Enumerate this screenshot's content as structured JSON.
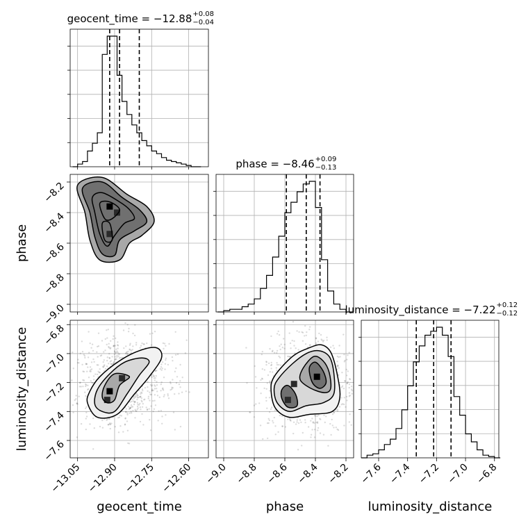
{
  "chart_data": {
    "type": "corner",
    "parameters": [
      {
        "key": "geocent_time",
        "label": "geocent_time",
        "median": -12.88,
        "plus": 0.08,
        "minus": 0.04,
        "title_main": "geocent_time = −12.88",
        "title_plus": "+0.08",
        "title_minus": "−0.04",
        "range": [
          -13.08,
          -12.52
        ],
        "ticks": [
          -13.05,
          -12.9,
          -12.75,
          -12.6
        ],
        "tick_labels": [
          "−13.05",
          "−12.90",
          "−12.75",
          "−12.60"
        ],
        "quantiles": [
          -12.92,
          -12.88,
          -12.8
        ],
        "hist_x": [
          -13.06,
          -13.04,
          -13.02,
          -13.0,
          -12.98,
          -12.96,
          -12.94,
          -12.92,
          -12.9,
          -12.88,
          -12.86,
          -12.84,
          -12.82,
          -12.8,
          -12.78,
          -12.76,
          -12.74,
          -12.72,
          -12.7,
          -12.68,
          -12.66,
          -12.64,
          -12.62,
          -12.6,
          -12.58,
          -12.56
        ],
        "hist_y": [
          0.0,
          0.02,
          0.04,
          0.12,
          0.18,
          0.26,
          0.86,
          1.0,
          1.0,
          0.7,
          0.5,
          0.4,
          0.32,
          0.26,
          0.2,
          0.16,
          0.12,
          0.1,
          0.07,
          0.05,
          0.04,
          0.03,
          0.02,
          0.01,
          0.0,
          0.0
        ]
      },
      {
        "key": "phase",
        "label": "phase",
        "median": -8.46,
        "plus": 0.09,
        "minus": 0.13,
        "title_main": "phase = −8.46",
        "title_plus": "+0.09",
        "title_minus": "−0.13",
        "range": [
          -9.05,
          -8.15
        ],
        "ticks": [
          -9.0,
          -8.8,
          -8.6,
          -8.4,
          -8.2
        ],
        "tick_labels": [
          "−9.0",
          "−8.8",
          "−8.6",
          "−8.4",
          "−8.2"
        ],
        "quantiles": [
          -8.59,
          -8.46,
          -8.37
        ],
        "hist_x": [
          -9.02,
          -8.98,
          -8.94,
          -8.9,
          -8.86,
          -8.82,
          -8.78,
          -8.74,
          -8.7,
          -8.66,
          -8.62,
          -8.58,
          -8.54,
          -8.5,
          -8.46,
          -8.42,
          -8.38,
          -8.34,
          -8.3,
          -8.26,
          -8.22,
          -8.18
        ],
        "hist_y": [
          0.0,
          0.01,
          0.02,
          0.02,
          0.04,
          0.06,
          0.1,
          0.18,
          0.28,
          0.42,
          0.58,
          0.76,
          0.84,
          0.92,
          0.98,
          1.0,
          0.8,
          0.4,
          0.16,
          0.06,
          0.02,
          0.0
        ]
      },
      {
        "key": "luminosity_distance",
        "label": "luminosity_distance",
        "median": -7.22,
        "plus": 0.12,
        "minus": 0.12,
        "title_main": "luminosity_distance = −7.22",
        "title_plus": "+0.12",
        "title_minus": "−0.12",
        "range": [
          -7.72,
          -6.77
        ],
        "ticks": [
          -7.6,
          -7.4,
          -7.2,
          -7.0,
          -6.8
        ],
        "tick_labels": [
          "−7.6",
          "−7.4",
          "−7.2",
          "−7.0",
          "−6.8"
        ],
        "quantiles": [
          -7.34,
          -7.22,
          -7.1
        ],
        "hist_x": [
          -7.7,
          -7.66,
          -7.62,
          -7.58,
          -7.54,
          -7.5,
          -7.46,
          -7.42,
          -7.38,
          -7.34,
          -7.3,
          -7.26,
          -7.22,
          -7.18,
          -7.14,
          -7.1,
          -7.06,
          -7.02,
          -6.98,
          -6.94,
          -6.9,
          -6.86,
          -6.82,
          -6.78
        ],
        "hist_y": [
          0.0,
          0.02,
          0.03,
          0.06,
          0.1,
          0.14,
          0.22,
          0.36,
          0.54,
          0.72,
          0.84,
          0.92,
          0.95,
          0.98,
          0.92,
          0.76,
          0.46,
          0.32,
          0.18,
          0.12,
          0.06,
          0.02,
          0.01,
          0.0
        ]
      }
    ],
    "pairs": [
      {
        "x": "geocent_time",
        "y": "phase",
        "density_peaks": [
          [
            -12.92,
            -8.36
          ],
          [
            -12.92,
            -8.54
          ],
          [
            -12.89,
            -8.4
          ]
        ],
        "contours": [
          [
            [
              -12.99,
              -8.3
            ],
            [
              -12.95,
              -8.27
            ],
            [
              -12.88,
              -8.33
            ],
            [
              -12.84,
              -8.38
            ],
            [
              -12.82,
              -8.44
            ],
            [
              -12.86,
              -8.47
            ],
            [
              -12.9,
              -8.55
            ],
            [
              -12.93,
              -8.62
            ],
            [
              -12.96,
              -8.54
            ],
            [
              -12.98,
              -8.4
            ]
          ],
          [
            [
              -13.03,
              -8.24
            ],
            [
              -12.95,
              -8.2
            ],
            [
              -12.87,
              -8.3
            ],
            [
              -12.8,
              -8.38
            ],
            [
              -12.77,
              -8.46
            ],
            [
              -12.82,
              -8.52
            ],
            [
              -12.88,
              -8.58
            ],
            [
              -12.9,
              -8.68
            ],
            [
              -12.95,
              -8.67
            ],
            [
              -12.98,
              -8.56
            ],
            [
              -13.0,
              -8.4
            ]
          ],
          [
            [
              -13.05,
              -8.22
            ],
            [
              -12.95,
              -8.17
            ],
            [
              -12.85,
              -8.28
            ],
            [
              -12.77,
              -8.36
            ],
            [
              -12.74,
              -8.46
            ],
            [
              -12.79,
              -8.55
            ],
            [
              -12.84,
              -8.6
            ],
            [
              -12.88,
              -8.71
            ],
            [
              -12.96,
              -8.71
            ],
            [
              -13.0,
              -8.58
            ],
            [
              -13.02,
              -8.4
            ]
          ],
          [
            [
              -12.96,
              -8.34
            ],
            [
              -12.92,
              -8.33
            ],
            [
              -12.88,
              -8.38
            ],
            [
              -12.91,
              -8.44
            ],
            [
              -12.94,
              -8.44
            ]
          ],
          [
            [
              -12.95,
              -8.47
            ],
            [
              -12.92,
              -8.47
            ],
            [
              -12.91,
              -8.58
            ],
            [
              -12.94,
              -8.58
            ]
          ]
        ]
      },
      {
        "x": "geocent_time",
        "y": "luminosity_distance",
        "density_peaks": [
          [
            -12.92,
            -7.26
          ],
          [
            -12.87,
            -7.17
          ],
          [
            -12.93,
            -7.32
          ]
        ],
        "contours": [
          [
            [
              -12.93,
              -7.34
            ],
            [
              -12.9,
              -7.32
            ],
            [
              -12.88,
              -7.22
            ],
            [
              -12.84,
              -7.16
            ],
            [
              -12.9,
              -7.14
            ],
            [
              -12.94,
              -7.22
            ],
            [
              -12.95,
              -7.3
            ]
          ],
          [
            [
              -12.98,
              -7.35
            ],
            [
              -12.95,
              -7.4
            ],
            [
              -12.9,
              -7.4
            ],
            [
              -12.85,
              -7.28
            ],
            [
              -12.8,
              -7.15
            ],
            [
              -12.76,
              -7.06
            ],
            [
              -12.79,
              -7.03
            ],
            [
              -12.86,
              -7.06
            ],
            [
              -12.92,
              -7.14
            ],
            [
              -12.97,
              -7.25
            ]
          ],
          [
            [
              -13.01,
              -7.34
            ],
            [
              -12.97,
              -7.44
            ],
            [
              -12.89,
              -7.42
            ],
            [
              -12.82,
              -7.28
            ],
            [
              -12.76,
              -7.16
            ],
            [
              -12.71,
              -7.03
            ],
            [
              -12.73,
              -6.96
            ],
            [
              -12.8,
              -6.98
            ],
            [
              -12.88,
              -7.05
            ],
            [
              -12.96,
              -7.16
            ],
            [
              -13.0,
              -7.26
            ]
          ]
        ]
      },
      {
        "x": "phase",
        "y": "luminosity_distance",
        "density_peaks": [
          [
            -8.39,
            -7.16
          ],
          [
            -8.58,
            -7.32
          ],
          [
            -8.54,
            -7.21
          ]
        ],
        "contours": [
          [
            [
              -8.44,
              -7.1
            ],
            [
              -8.4,
              -7.06
            ],
            [
              -8.35,
              -7.12
            ],
            [
              -8.33,
              -7.2
            ],
            [
              -8.37,
              -7.24
            ],
            [
              -8.42,
              -7.2
            ]
          ],
          [
            [
              -8.62,
              -7.25
            ],
            [
              -8.58,
              -7.22
            ],
            [
              -8.53,
              -7.28
            ],
            [
              -8.52,
              -7.36
            ],
            [
              -8.58,
              -7.37
            ],
            [
              -8.62,
              -7.31
            ]
          ],
          [
            [
              -8.48,
              -7.1
            ],
            [
              -8.41,
              -7.02
            ],
            [
              -8.35,
              -7.05
            ],
            [
              -8.31,
              -7.13
            ],
            [
              -8.3,
              -7.24
            ],
            [
              -8.34,
              -7.27
            ],
            [
              -8.43,
              -7.24
            ],
            [
              -8.5,
              -7.18
            ]
          ],
          [
            [
              -8.64,
              -7.17
            ],
            [
              -8.55,
              -7.07
            ],
            [
              -8.46,
              -7.0
            ],
            [
              -8.38,
              -6.98
            ],
            [
              -8.31,
              -7.02
            ],
            [
              -8.28,
              -7.13
            ],
            [
              -8.28,
              -7.28
            ],
            [
              -8.35,
              -7.34
            ],
            [
              -8.46,
              -7.36
            ],
            [
              -8.57,
              -7.4
            ],
            [
              -8.65,
              -7.34
            ],
            [
              -8.67,
              -7.24
            ]
          ],
          [
            [
              -8.67,
              -7.16
            ],
            [
              -8.55,
              -7.02
            ],
            [
              -8.44,
              -6.96
            ],
            [
              -8.36,
              -6.94
            ],
            [
              -8.3,
              -6.99
            ],
            [
              -8.26,
              -7.13
            ],
            [
              -8.24,
              -7.3
            ],
            [
              -8.29,
              -7.4
            ],
            [
              -8.44,
              -7.42
            ],
            [
              -8.57,
              -7.44
            ],
            [
              -8.66,
              -7.38
            ],
            [
              -8.69,
              -7.26
            ]
          ]
        ]
      }
    ]
  }
}
